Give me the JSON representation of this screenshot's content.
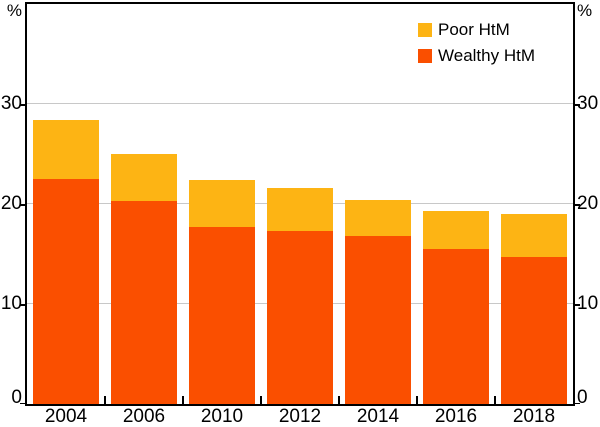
{
  "chart": {
    "y_unit_left": "%",
    "y_unit_right": "%"
  },
  "legend": {
    "items": [
      {
        "label": "Poor HtM",
        "color": "#FDB414"
      },
      {
        "label": "Wealthy HtM",
        "color": "#FA4F00"
      }
    ]
  },
  "chart_data": {
    "type": "bar",
    "stacked": true,
    "title": "",
    "xlabel": "",
    "ylabel": "%",
    "categories": [
      "2004",
      "2006",
      "2010",
      "2012",
      "2014",
      "2016",
      "2018"
    ],
    "series": [
      {
        "name": "Wealthy HtM",
        "color": "#FA4F00",
        "values": [
          22.5,
          20.3,
          17.7,
          17.3,
          16.8,
          15.5,
          14.7
        ]
      },
      {
        "name": "Poor HtM",
        "color": "#FDB414",
        "values": [
          5.9,
          4.7,
          4.7,
          4.3,
          3.6,
          3.8,
          4.3
        ]
      }
    ],
    "stack_totals": [
      28.4,
      25.0,
      22.4,
      21.6,
      20.4,
      19.3,
      19.0
    ],
    "ylim": [
      0,
      40
    ],
    "yticks": [
      0,
      10,
      20,
      30
    ],
    "grid": true,
    "gridline_color": "#c8c8c8",
    "axis_color": "#000000",
    "legend_position": "top-right"
  }
}
